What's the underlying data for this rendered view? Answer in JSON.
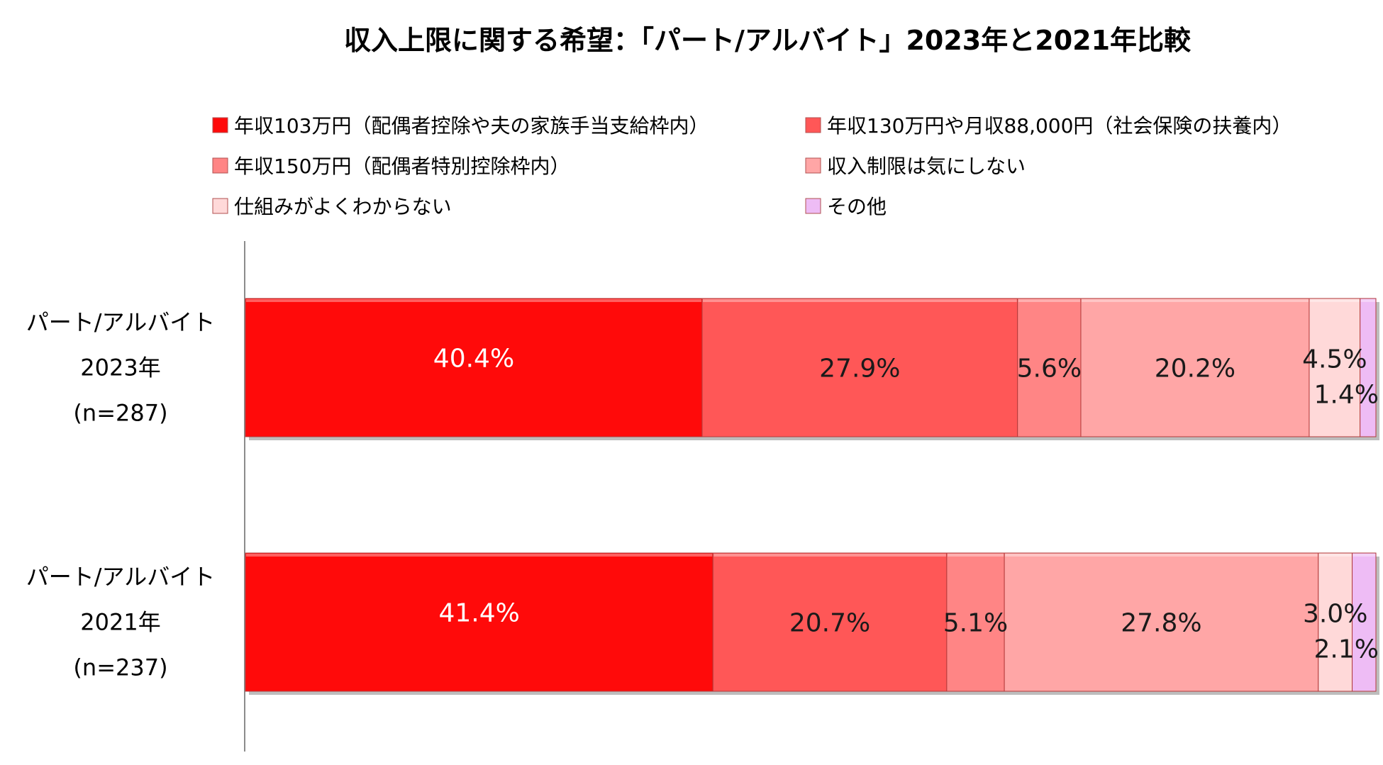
{
  "chart_data": {
    "type": "bar",
    "orientation": "horizontal",
    "stacked": "percent",
    "title": "収入上限に関する希望：「パート/アルバイト」2023年と2021年比較",
    "legend_position": "top",
    "grid": false,
    "categories": [
      {
        "lines": [
          "パート/アルバイト",
          "2023年",
          "(n=287)"
        ]
      },
      {
        "lines": [
          "パート/アルバイト",
          "2021年",
          "(n=237)"
        ]
      }
    ],
    "series": [
      {
        "name": "年収103万円（配偶者控除や夫の家族手当支給枠内）",
        "color": "#ff0a0a",
        "label_color": "#ffffff",
        "values": [
          40.4,
          41.4
        ],
        "labels": [
          "40.4%",
          "41.4%"
        ]
      },
      {
        "name": "年収130万円や月収88,000円（社会保険の扶養内）",
        "color": "#ff5757",
        "label_color": "#1a1a1a",
        "values": [
          27.9,
          20.7
        ],
        "labels": [
          "27.9%",
          "20.7%"
        ]
      },
      {
        "name": "年収150万円（配偶者特別控除枠内）",
        "color": "#ff8585",
        "label_color": "#1a1a1a",
        "values": [
          5.6,
          5.1
        ],
        "labels": [
          "5.6%",
          "5.1%"
        ]
      },
      {
        "name": "収入制限は気にしない",
        "color": "#ffa6a6",
        "label_color": "#1a1a1a",
        "values": [
          20.2,
          27.8
        ],
        "labels": [
          "20.2%",
          "27.8%"
        ]
      },
      {
        "name": "仕組みがよくわからない",
        "color": "#ffd9d9",
        "label_color": "#1a1a1a",
        "values": [
          4.5,
          3.0
        ],
        "labels": [
          "4.5%",
          "3.0%"
        ]
      },
      {
        "name": "その他",
        "color": "#eebcf5",
        "label_color": "#1a1a1a",
        "values": [
          1.4,
          2.1
        ],
        "labels": [
          "1.4%",
          "2.1%"
        ]
      }
    ]
  }
}
